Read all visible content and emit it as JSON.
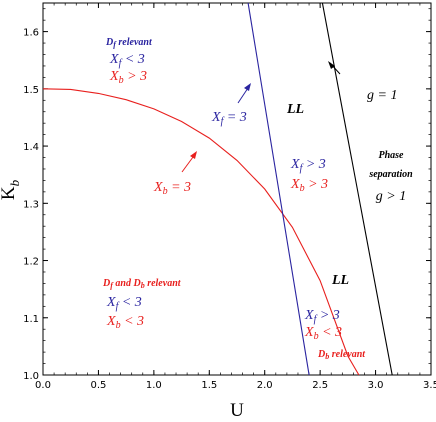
{
  "chart_data": {
    "type": "line",
    "xlabel": "U",
    "ylabel": "K_b",
    "xlim": [
      0.0,
      3.5
    ],
    "ylim": [
      1.0,
      1.65
    ],
    "grid": false,
    "x_ticks": [
      "0.0",
      "0.5",
      "1.0",
      "1.5",
      "2.0",
      "2.5",
      "3.0",
      "3.5"
    ],
    "y_ticks": [
      "1.0",
      "1.1",
      "1.2",
      "1.3",
      "1.4",
      "1.5",
      "1.6"
    ],
    "series": [
      {
        "name": "X_b = 3",
        "color": "#e8201e",
        "x": [
          0.0,
          0.25,
          0.5,
          0.75,
          1.0,
          1.25,
          1.5,
          1.75,
          2.0,
          2.25,
          2.5,
          2.75,
          2.85
        ],
        "y": [
          1.5,
          1.499,
          1.492,
          1.481,
          1.465,
          1.443,
          1.414,
          1.375,
          1.325,
          1.258,
          1.165,
          1.033,
          1.0
        ]
      },
      {
        "name": "X_f = 3",
        "color": "#2a24a0",
        "x": [
          1.85,
          2.4
        ],
        "y": [
          1.65,
          1.0
        ]
      },
      {
        "name": "g = 1",
        "color": "#000000",
        "x": [
          2.52,
          3.15
        ],
        "y": [
          1.65,
          1.0
        ]
      }
    ],
    "annotations": {
      "df_relevant": {
        "title": "D_f relevant",
        "line1": "X_f < 3",
        "line2": "X_b > 3"
      },
      "both_relevant": {
        "title": "D_f and D_b relevant",
        "line1": "X_f < 3",
        "line2": "X_b < 3"
      },
      "middle_region": {
        "line1": "X_f > 3",
        "line2": "X_b > 3"
      },
      "lower_region": {
        "line1": "X_f > 3",
        "line2": "X_b < 3"
      },
      "db_relevant": "D_b relevant",
      "phase_sep": {
        "line1": "Phase",
        "line2": "separation",
        "line3": "g > 1"
      },
      "ll_upper": "LL",
      "ll_lower": "LL",
      "label_xf": "X_f = 3",
      "label_xb": "X_b = 3",
      "label_g": "g = 1"
    }
  }
}
